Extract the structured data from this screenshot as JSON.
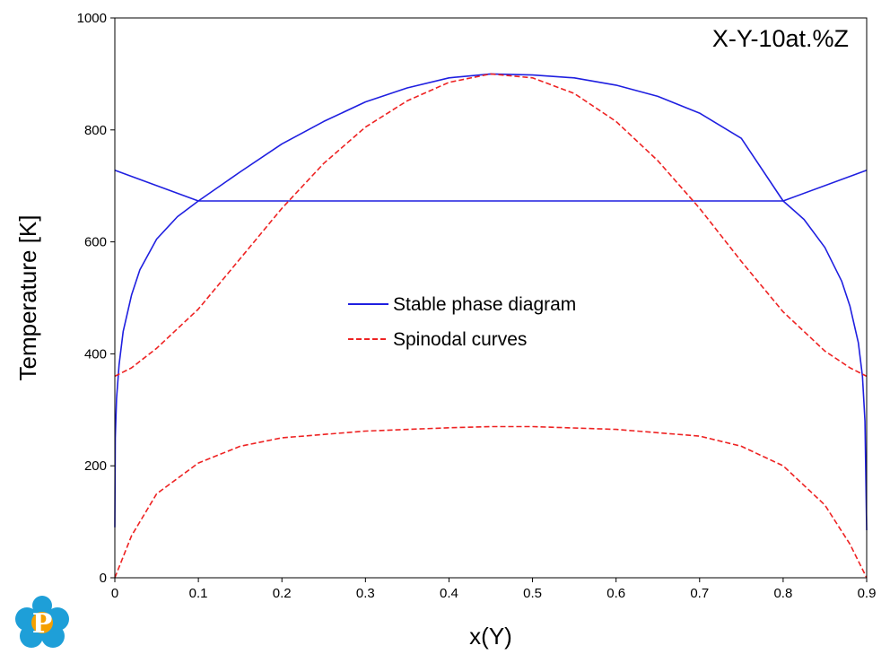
{
  "chart_data": {
    "type": "line",
    "title": "X-Y-10at.%Z",
    "xlabel": "x(Y)",
    "ylabel": "Temperature [K]",
    "xlim": [
      0,
      0.9
    ],
    "ylim": [
      0,
      1000
    ],
    "xticks": [
      0,
      0.1,
      0.2,
      0.3,
      0.4,
      0.5,
      0.6,
      0.7,
      0.8,
      0.9
    ],
    "yticks": [
      0,
      200,
      400,
      600,
      800,
      1000
    ],
    "xtick_labels": [
      "0",
      "0.1",
      "0.2",
      "0.3",
      "0.4",
      "0.5",
      "0.6",
      "0.7",
      "0.8",
      "0.9"
    ],
    "ytick_labels": [
      "0",
      "200",
      "400",
      "600",
      "800",
      "1000"
    ],
    "grid": false,
    "legend_position": "center",
    "legend": [
      {
        "label": "Stable phase diagram",
        "color": "#1f1fe0",
        "style": "solid"
      },
      {
        "label": "Spinodal curves",
        "color": "#ee2222",
        "style": "dashed"
      }
    ],
    "series": [
      {
        "name": "Stable phase diagram",
        "color": "#1f1fe0",
        "style": "solid",
        "segments": [
          [
            [
              0.0,
              90
            ],
            [
              0.0005,
              250
            ],
            [
              0.002,
              320
            ],
            [
              0.005,
              380
            ],
            [
              0.01,
              440
            ],
            [
              0.02,
              505
            ],
            [
              0.03,
              550
            ],
            [
              0.05,
              605
            ],
            [
              0.075,
              645
            ],
            [
              0.1,
              673
            ],
            [
              0.15,
              725
            ],
            [
              0.2,
              775
            ],
            [
              0.25,
              815
            ],
            [
              0.3,
              850
            ],
            [
              0.35,
              875
            ],
            [
              0.4,
              893
            ],
            [
              0.45,
              900
            ],
            [
              0.5,
              898
            ],
            [
              0.55,
              893
            ],
            [
              0.6,
              880
            ],
            [
              0.65,
              860
            ],
            [
              0.7,
              830
            ],
            [
              0.75,
              785
            ],
            [
              0.8,
              673
            ],
            [
              0.825,
              640
            ],
            [
              0.85,
              590
            ],
            [
              0.87,
              530
            ],
            [
              0.88,
              485
            ],
            [
              0.89,
              420
            ],
            [
              0.895,
              360
            ],
            [
              0.898,
              280
            ],
            [
              0.9,
              85
            ]
          ],
          [
            [
              0.0,
              728
            ],
            [
              0.1,
              673
            ],
            [
              0.8,
              673
            ],
            [
              0.9,
              728
            ]
          ]
        ]
      },
      {
        "name": "Spinodal curves",
        "color": "#ee2222",
        "style": "dashed",
        "segments": [
          [
            [
              0.0,
              360
            ],
            [
              0.02,
              375
            ],
            [
              0.05,
              410
            ],
            [
              0.1,
              480
            ],
            [
              0.15,
              570
            ],
            [
              0.2,
              660
            ],
            [
              0.25,
              740
            ],
            [
              0.3,
              805
            ],
            [
              0.35,
              852
            ],
            [
              0.4,
              885
            ],
            [
              0.45,
              900
            ],
            [
              0.5,
              893
            ],
            [
              0.55,
              865
            ],
            [
              0.6,
              815
            ],
            [
              0.65,
              745
            ],
            [
              0.7,
              660
            ],
            [
              0.75,
              565
            ],
            [
              0.8,
              475
            ],
            [
              0.85,
              405
            ],
            [
              0.88,
              375
            ],
            [
              0.9,
              360
            ]
          ],
          [
            [
              0.0,
              0
            ],
            [
              0.02,
              75
            ],
            [
              0.05,
              150
            ],
            [
              0.1,
              205
            ],
            [
              0.15,
              235
            ],
            [
              0.2,
              250
            ],
            [
              0.3,
              262
            ],
            [
              0.4,
              268
            ],
            [
              0.45,
              270
            ],
            [
              0.5,
              270
            ],
            [
              0.6,
              265
            ],
            [
              0.7,
              253
            ],
            [
              0.75,
              235
            ],
            [
              0.8,
              200
            ],
            [
              0.85,
              130
            ],
            [
              0.88,
              60
            ],
            [
              0.9,
              0
            ]
          ]
        ]
      }
    ]
  },
  "logo": {
    "letter": "P",
    "color_outer": "#1e9fd8",
    "color_inner": "#f5a000"
  }
}
